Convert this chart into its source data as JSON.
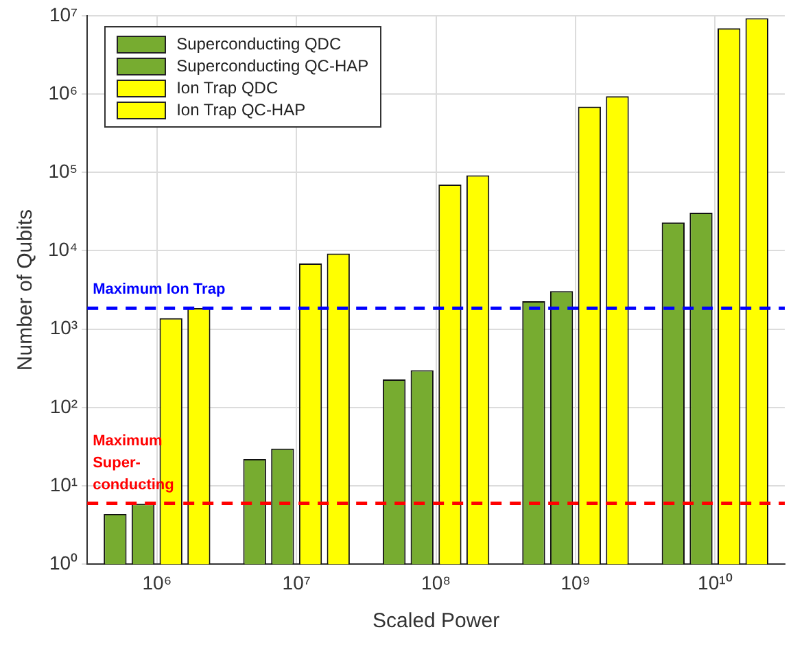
{
  "chart_data": {
    "type": "bar",
    "xlabel": "Scaled Power",
    "ylabel": "Number of Qubits",
    "categories": [
      "10⁶",
      "10⁷",
      "10⁸",
      "10⁹",
      "10¹⁰"
    ],
    "series": [
      {
        "name": "Superconducting QDC",
        "color": "#77ac30",
        "values": [
          4.4,
          22,
          228,
          2270,
          23000
        ]
      },
      {
        "name": "Superconducting QC-HAP",
        "color": "#77ac30",
        "values": [
          5.9,
          30,
          300,
          3060,
          30600
        ]
      },
      {
        "name": "Ion Trap QDC",
        "color": "#ffff00",
        "values": [
          1380,
          6900,
          70000,
          690000,
          6900000
        ]
      },
      {
        "name": "Ion Trap QC-HAP",
        "color": "#ffff00",
        "values": [
          1860,
          9200,
          92000,
          935000,
          9300000
        ]
      }
    ],
    "log": "y",
    "ylim": [
      1,
      10000000
    ],
    "yticks": [
      {
        "value": 1,
        "label": "10⁰"
      },
      {
        "value": 10,
        "label": "10¹"
      },
      {
        "value": 100,
        "label": "10²"
      },
      {
        "value": 1000,
        "label": "10³"
      },
      {
        "value": 10000,
        "label": "10⁴"
      },
      {
        "value": 100000,
        "label": "10⁵"
      },
      {
        "value": 1000000,
        "label": "10⁶"
      },
      {
        "value": 10000000,
        "label": "10⁷"
      }
    ],
    "ref_lines": [
      {
        "axis": "y",
        "value": 1850,
        "label": "Maximum Ion Trap",
        "color": "#0000ff",
        "line_style": "dashed"
      },
      {
        "axis": "y",
        "value": 6,
        "label": "Maximum Super-conducting",
        "color": "#ff0000",
        "line_style": "dashed"
      }
    ],
    "grid": true,
    "legend": "top left"
  }
}
